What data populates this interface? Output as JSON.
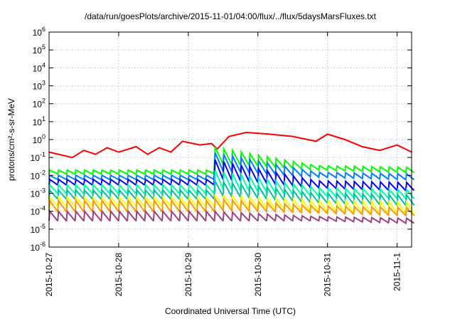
{
  "chart_data": {
    "type": "line",
    "title": "/data/run/goesPlots/archive/2015-11-01/04:00/flux/../flux/5daysMarsFluxes.txt",
    "xlabel": "Coordinated Universal Time (UTC)",
    "ylabel": "protons/cm²-s-sr-MeV",
    "yscale": "log",
    "ylim": [
      1e-06,
      1000000.0
    ],
    "xlim": [
      "2015-10-27T00:00",
      "2015-11-01T05:00"
    ],
    "grid": true,
    "legend": "none",
    "x_ticks": [
      "2015-10-27",
      "2015-10-28",
      "2015-10-29",
      "2015-10-30",
      "2015-10-31",
      "2015-11-1"
    ],
    "y_ticks": [
      {
        "mant": "10",
        "exp": "6"
      },
      {
        "mant": "10",
        "exp": "5"
      },
      {
        "mant": "10",
        "exp": "4"
      },
      {
        "mant": "10",
        "exp": "3"
      },
      {
        "mant": "10",
        "exp": "2"
      },
      {
        "mant": "10",
        "exp": "1"
      },
      {
        "mant": "10",
        "exp": "0"
      },
      {
        "mant": "10",
        "exp": "-1"
      },
      {
        "mant": "10",
        "exp": "-2"
      },
      {
        "mant": "10",
        "exp": "-3"
      },
      {
        "mant": "10",
        "exp": "-4"
      },
      {
        "mant": "10",
        "exp": "-5"
      },
      {
        "mant": "10",
        "exp": "-6"
      }
    ],
    "series": [
      {
        "color": "#ff0000",
        "style": "jagged-slow",
        "points": [
          [
            "2015-10-27T00:00",
            0.2
          ],
          [
            "2015-10-27T08:00",
            0.1
          ],
          [
            "2015-10-27T12:00",
            0.25
          ],
          [
            "2015-10-27T16:00",
            0.15
          ],
          [
            "2015-10-27T20:00",
            0.35
          ],
          [
            "2015-10-28T00:00",
            0.2
          ],
          [
            "2015-10-28T06:00",
            0.4
          ],
          [
            "2015-10-28T10:00",
            0.15
          ],
          [
            "2015-10-28T14:00",
            0.35
          ],
          [
            "2015-10-28T18:00",
            0.2
          ],
          [
            "2015-10-28T22:00",
            0.8
          ],
          [
            "2015-10-29T04:00",
            0.5
          ],
          [
            "2015-10-29T08:00",
            0.6
          ],
          [
            "2015-10-29T10:00",
            0.3
          ],
          [
            "2015-10-29T14:00",
            1.5
          ],
          [
            "2015-10-29T20:00",
            2.5
          ],
          [
            "2015-10-30T04:00",
            2.0
          ],
          [
            "2015-10-30T12:00",
            1.5
          ],
          [
            "2015-10-30T20:00",
            0.8
          ],
          [
            "2015-10-31T00:00",
            2.0
          ],
          [
            "2015-10-31T06:00",
            1.0
          ],
          [
            "2015-10-31T12:00",
            0.4
          ],
          [
            "2015-10-31T18:00",
            0.25
          ],
          [
            "2015-11-01T00:00",
            0.5
          ],
          [
            "2015-11-01T05:00",
            0.2
          ]
        ]
      },
      {
        "color": "#00ff00",
        "style": "sawtooth",
        "before": [
          0.012,
          0.02
        ],
        "after": [
          0.4,
          0.05
        ],
        "end": [
          0.035,
          0.02
        ]
      },
      {
        "color": "#0080ff",
        "style": "sawtooth",
        "before": [
          0.006,
          0.01
        ],
        "after": [
          0.2,
          0.02
        ],
        "end": [
          0.015,
          0.008
        ]
      },
      {
        "color": "#0000ff",
        "style": "sawtooth",
        "before": [
          0.003,
          0.006
        ],
        "after": [
          0.08,
          0.007
        ],
        "end": [
          0.005,
          0.002
        ]
      },
      {
        "color": "#00ffaa",
        "style": "sawtooth",
        "before": [
          0.001,
          0.003
        ],
        "after": [
          0.02,
          0.002
        ],
        "end": [
          0.002,
          0.0007
        ]
      },
      {
        "color": "#00c0a0",
        "style": "sawtooth",
        "before": [
          0.0005,
          0.0015
        ],
        "after": [
          0.005,
          0.0008
        ],
        "end": [
          0.001,
          0.0003
        ]
      },
      {
        "color": "#ffff00",
        "style": "sawtooth",
        "before": [
          0.0002,
          0.0006
        ],
        "after": [
          0.0008,
          0.0002
        ],
        "end": [
          0.0004,
          0.0001
        ]
      },
      {
        "color": "#ff9800",
        "style": "sawtooth",
        "before": [
          0.0001,
          0.0004
        ],
        "after": [
          0.0005,
          0.00012
        ],
        "end": [
          0.0002,
          8e-05
        ]
      },
      {
        "color": "#a04080",
        "style": "sawtooth",
        "before": [
          3e-05,
          0.0001
        ],
        "after": [
          0.0001,
          3e-05
        ],
        "end": [
          5e-05,
          3e-05
        ]
      }
    ]
  }
}
